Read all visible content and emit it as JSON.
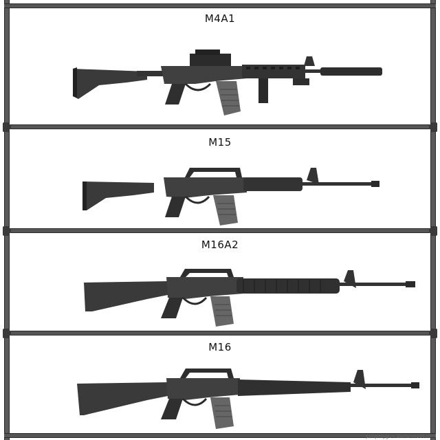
{
  "panels": [
    {
      "title": "M4A1",
      "icon": "m4a1-rifle-icon"
    },
    {
      "title": "M15",
      "icon": "m15-rifle-icon"
    },
    {
      "title": "M16A2",
      "icon": "m16a2-rifle-icon"
    },
    {
      "title": "M16",
      "icon": "m16-rifle-icon"
    }
  ],
  "credit": "pimpmygun.doctormo0t.com",
  "colors": {
    "frame": "#555555",
    "gun_body": "#3c3c3c",
    "gun_dark": "#222222",
    "gun_light": "#777777"
  }
}
